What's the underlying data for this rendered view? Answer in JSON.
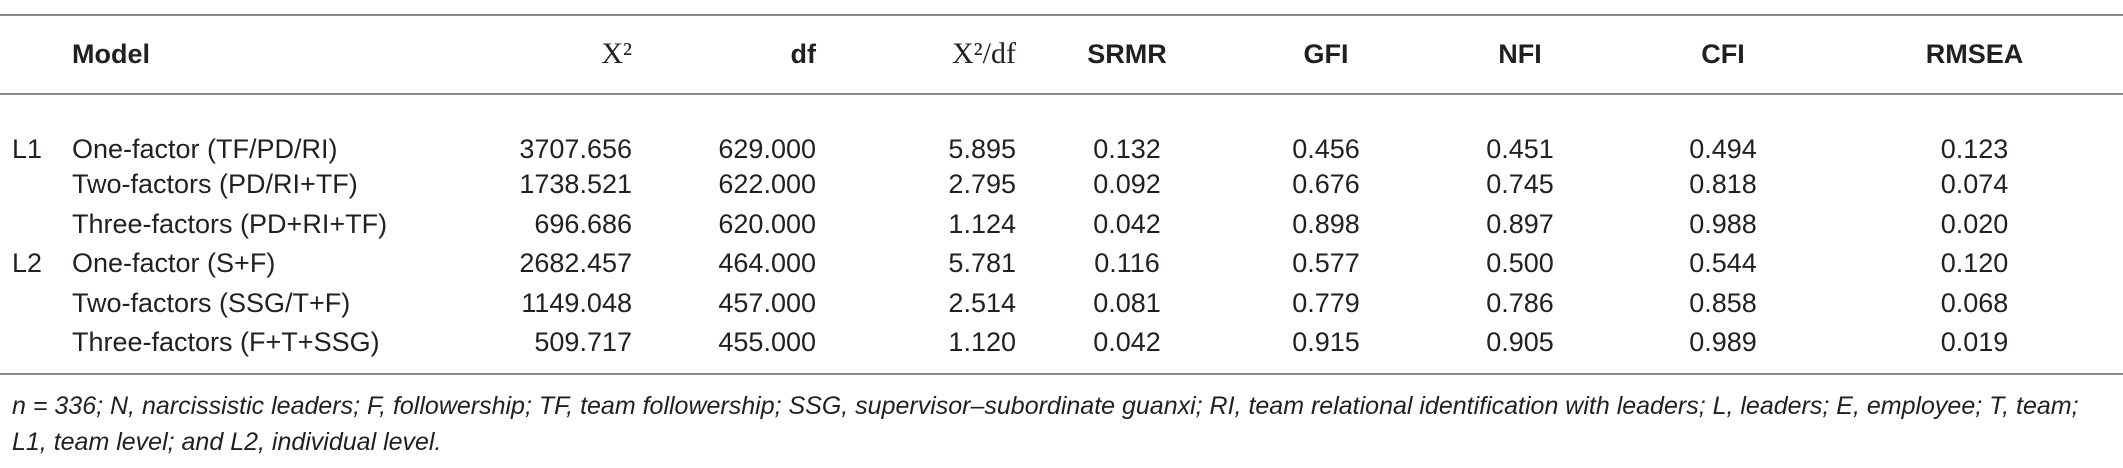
{
  "table": {
    "headers": {
      "level": "",
      "model": "Model",
      "chi2": "X²",
      "df": "df",
      "chi2_df": "X²/df",
      "srmr": "SRMR",
      "gfi": "GFI",
      "nfi": "NFI",
      "cfi": "CFI",
      "rmsea": "RMSEA"
    },
    "rows": [
      {
        "level": "L1",
        "model": "One-factor (TF/PD/RI)",
        "chi2": "3707.656",
        "df": "629.000",
        "chi2_df": "5.895",
        "srmr": "0.132",
        "gfi": "0.456",
        "nfi": "0.451",
        "cfi": "0.494",
        "rmsea": "0.123"
      },
      {
        "level": "",
        "model": "Two-factors (PD/RI+TF)",
        "chi2": "1738.521",
        "df": "622.000",
        "chi2_df": "2.795",
        "srmr": "0.092",
        "gfi": "0.676",
        "nfi": "0.745",
        "cfi": "0.818",
        "rmsea": "0.074"
      },
      {
        "level": "",
        "model": "Three-factors (PD+RI+TF)",
        "chi2": "696.686",
        "df": "620.000",
        "chi2_df": "1.124",
        "srmr": "0.042",
        "gfi": "0.898",
        "nfi": "0.897",
        "cfi": "0.988",
        "rmsea": "0.020"
      },
      {
        "level": "L2",
        "model": "One-factor (S+F)",
        "chi2": "2682.457",
        "df": "464.000",
        "chi2_df": "5.781",
        "srmr": "0.116",
        "gfi": "0.577",
        "nfi": "0.500",
        "cfi": "0.544",
        "rmsea": "0.120"
      },
      {
        "level": "",
        "model": "Two-factors (SSG/T+F)",
        "chi2": "1149.048",
        "df": "457.000",
        "chi2_df": "2.514",
        "srmr": "0.081",
        "gfi": "0.779",
        "nfi": "0.786",
        "cfi": "0.858",
        "rmsea": "0.068"
      },
      {
        "level": "",
        "model": "Three-factors (F+T+SSG)",
        "chi2": "509.717",
        "df": "455.000",
        "chi2_df": "1.120",
        "srmr": "0.042",
        "gfi": "0.915",
        "nfi": "0.905",
        "cfi": "0.989",
        "rmsea": "0.019"
      }
    ],
    "note": "n = 336; N, narcissistic leaders; F, followership; TF, team followership; SSG, supervisor–subordinate guanxi; RI, team relational identification with leaders; L, leaders; E, employee; T, team; L1, team level; and L2, individual level."
  }
}
